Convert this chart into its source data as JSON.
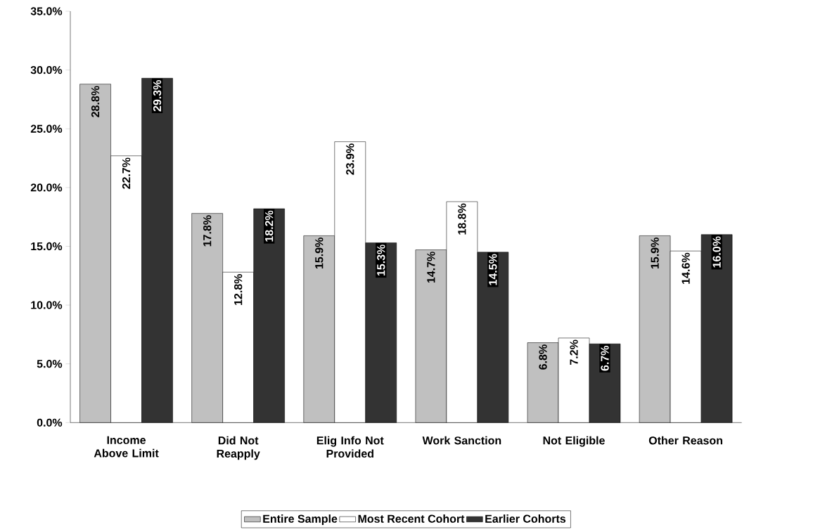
{
  "chart_data": {
    "type": "bar",
    "categories": [
      "Income Above Limit",
      "Did Not Reapply",
      "Elig Info Not Provided",
      "Work Sanction",
      "Not Eligible",
      "Other Reason"
    ],
    "series": [
      {
        "name": "Entire Sample",
        "color": "#c0c0c0",
        "values": [
          28.8,
          17.8,
          15.9,
          14.7,
          6.8,
          15.9
        ],
        "value_labels": [
          "28.8%",
          "17.8%",
          "15.9%",
          "14.7%",
          "6.8%",
          "15.9%"
        ]
      },
      {
        "name": "Most Recent Cohort",
        "color": "#ffffff",
        "values": [
          22.7,
          12.8,
          23.9,
          18.8,
          7.2,
          14.6
        ],
        "value_labels": [
          "22.7%",
          "12.8%",
          "23.9%",
          "18.8%",
          "7.2%",
          "14.6%"
        ]
      },
      {
        "name": "Earlier Cohorts",
        "color": "#333333",
        "values": [
          29.3,
          18.2,
          15.3,
          14.5,
          6.7,
          16.0
        ],
        "value_labels": [
          "29.3%",
          "18.2%",
          "15.3%",
          "14.5%",
          "6.7%",
          "16.0%"
        ]
      }
    ],
    "ylim": [
      0,
      35
    ],
    "yticks": [
      {
        "value": 0,
        "label": "0.0%"
      },
      {
        "value": 5,
        "label": "5.0%"
      },
      {
        "value": 10,
        "label": "10.0%"
      },
      {
        "value": 15,
        "label": "15.0%"
      },
      {
        "value": 20,
        "label": "20.0%"
      },
      {
        "value": 25,
        "label": "25.0%"
      },
      {
        "value": 30,
        "label": "30.0%"
      },
      {
        "value": 35,
        "label": "35.0%"
      }
    ],
    "grid": false,
    "legend": "bottom"
  }
}
